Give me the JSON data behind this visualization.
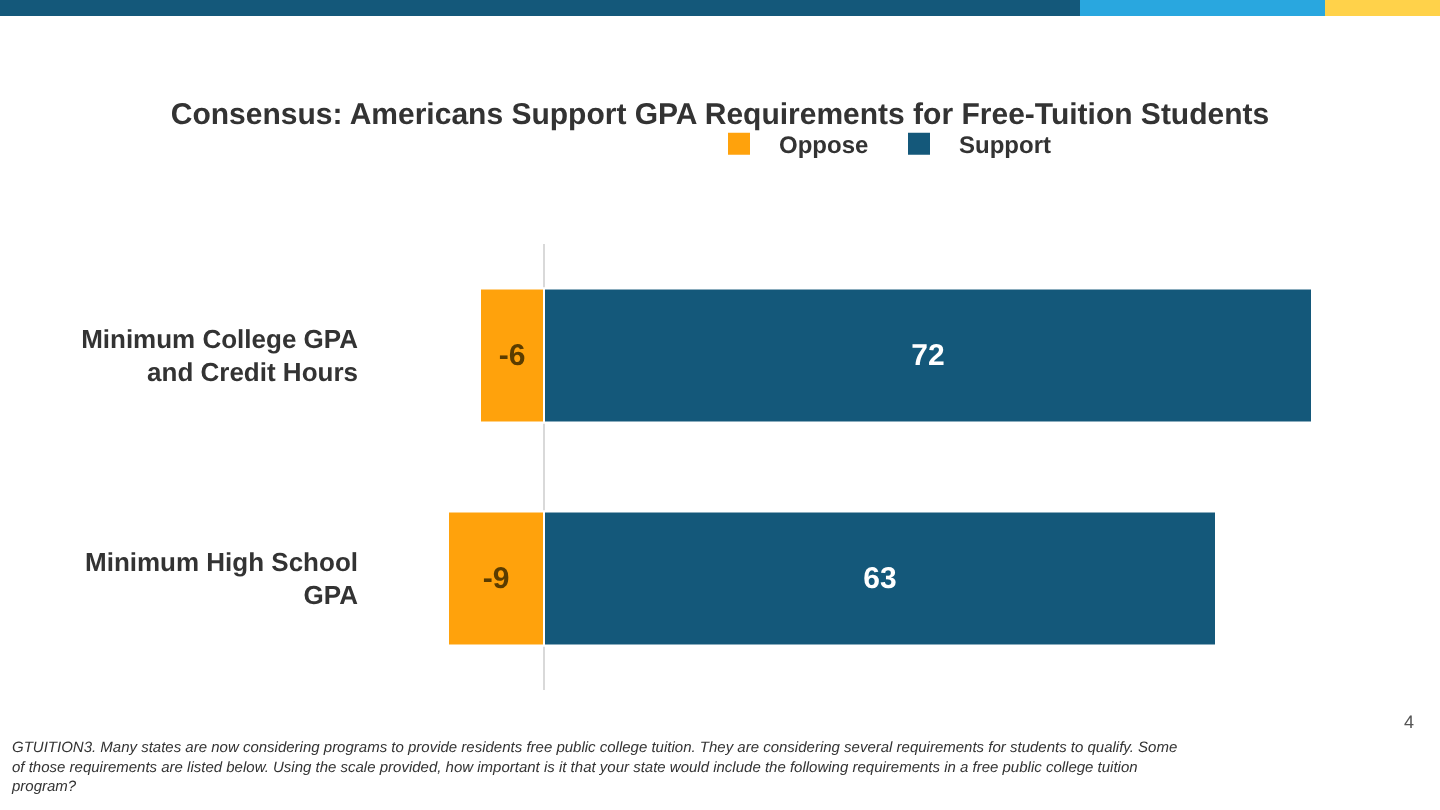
{
  "chart_data": {
    "type": "bar",
    "orientation": "horizontal",
    "stacked": true,
    "title": "Consensus: Americans Support GPA Requirements for Free-Tuition Students",
    "categories": [
      "Minimum College GPA and Credit Hours",
      "Minimum High School GPA"
    ],
    "series": [
      {
        "name": "Oppose",
        "color": "#ffa20c",
        "values": [
          -6,
          -9
        ]
      },
      {
        "name": "Support",
        "color": "#14587a",
        "values": [
          72,
          63
        ]
      }
    ],
    "data_labels": true,
    "legend": "top",
    "grid": false,
    "tick_labels": "y",
    "annotations": [
      "GTUITION3. Many states are now considering programs to provide residents free public college tuition.   They are considering several requirements for students to qualify.  Some of those requirements are listed below.  Using the scale provided, how important is it that your state would include the following requirements in a free public college tuition program?",
      "4"
    ]
  }
}
